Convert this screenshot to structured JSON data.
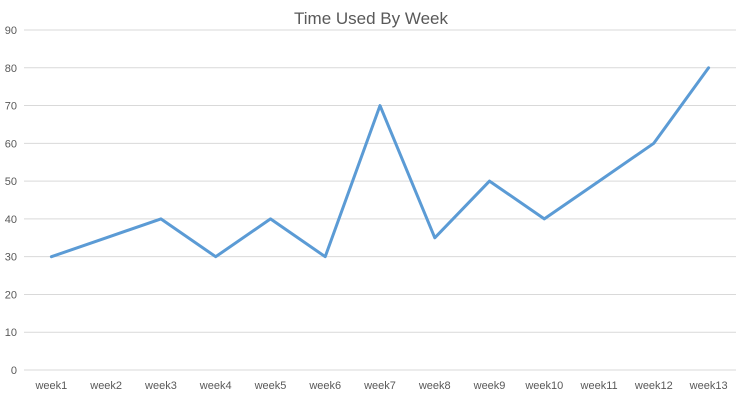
{
  "chart_data": {
    "type": "line",
    "title": "Time Used By Week",
    "xlabel": "",
    "ylabel": "",
    "categories": [
      "week1",
      "week2",
      "week3",
      "week4",
      "week5",
      "week6",
      "week7",
      "week8",
      "week9",
      "week10",
      "week11",
      "week12",
      "week13"
    ],
    "series": [
      {
        "values": [
          30,
          35,
          40,
          30,
          40,
          30,
          70,
          35,
          50,
          40,
          50,
          60,
          80
        ],
        "color": "#5b9bd5"
      }
    ],
    "ylim": [
      0,
      90
    ],
    "yticks": [
      "0",
      "10",
      "20",
      "30",
      "40",
      "50",
      "60",
      "70",
      "80",
      "90"
    ],
    "grid": true,
    "legend": "none"
  }
}
